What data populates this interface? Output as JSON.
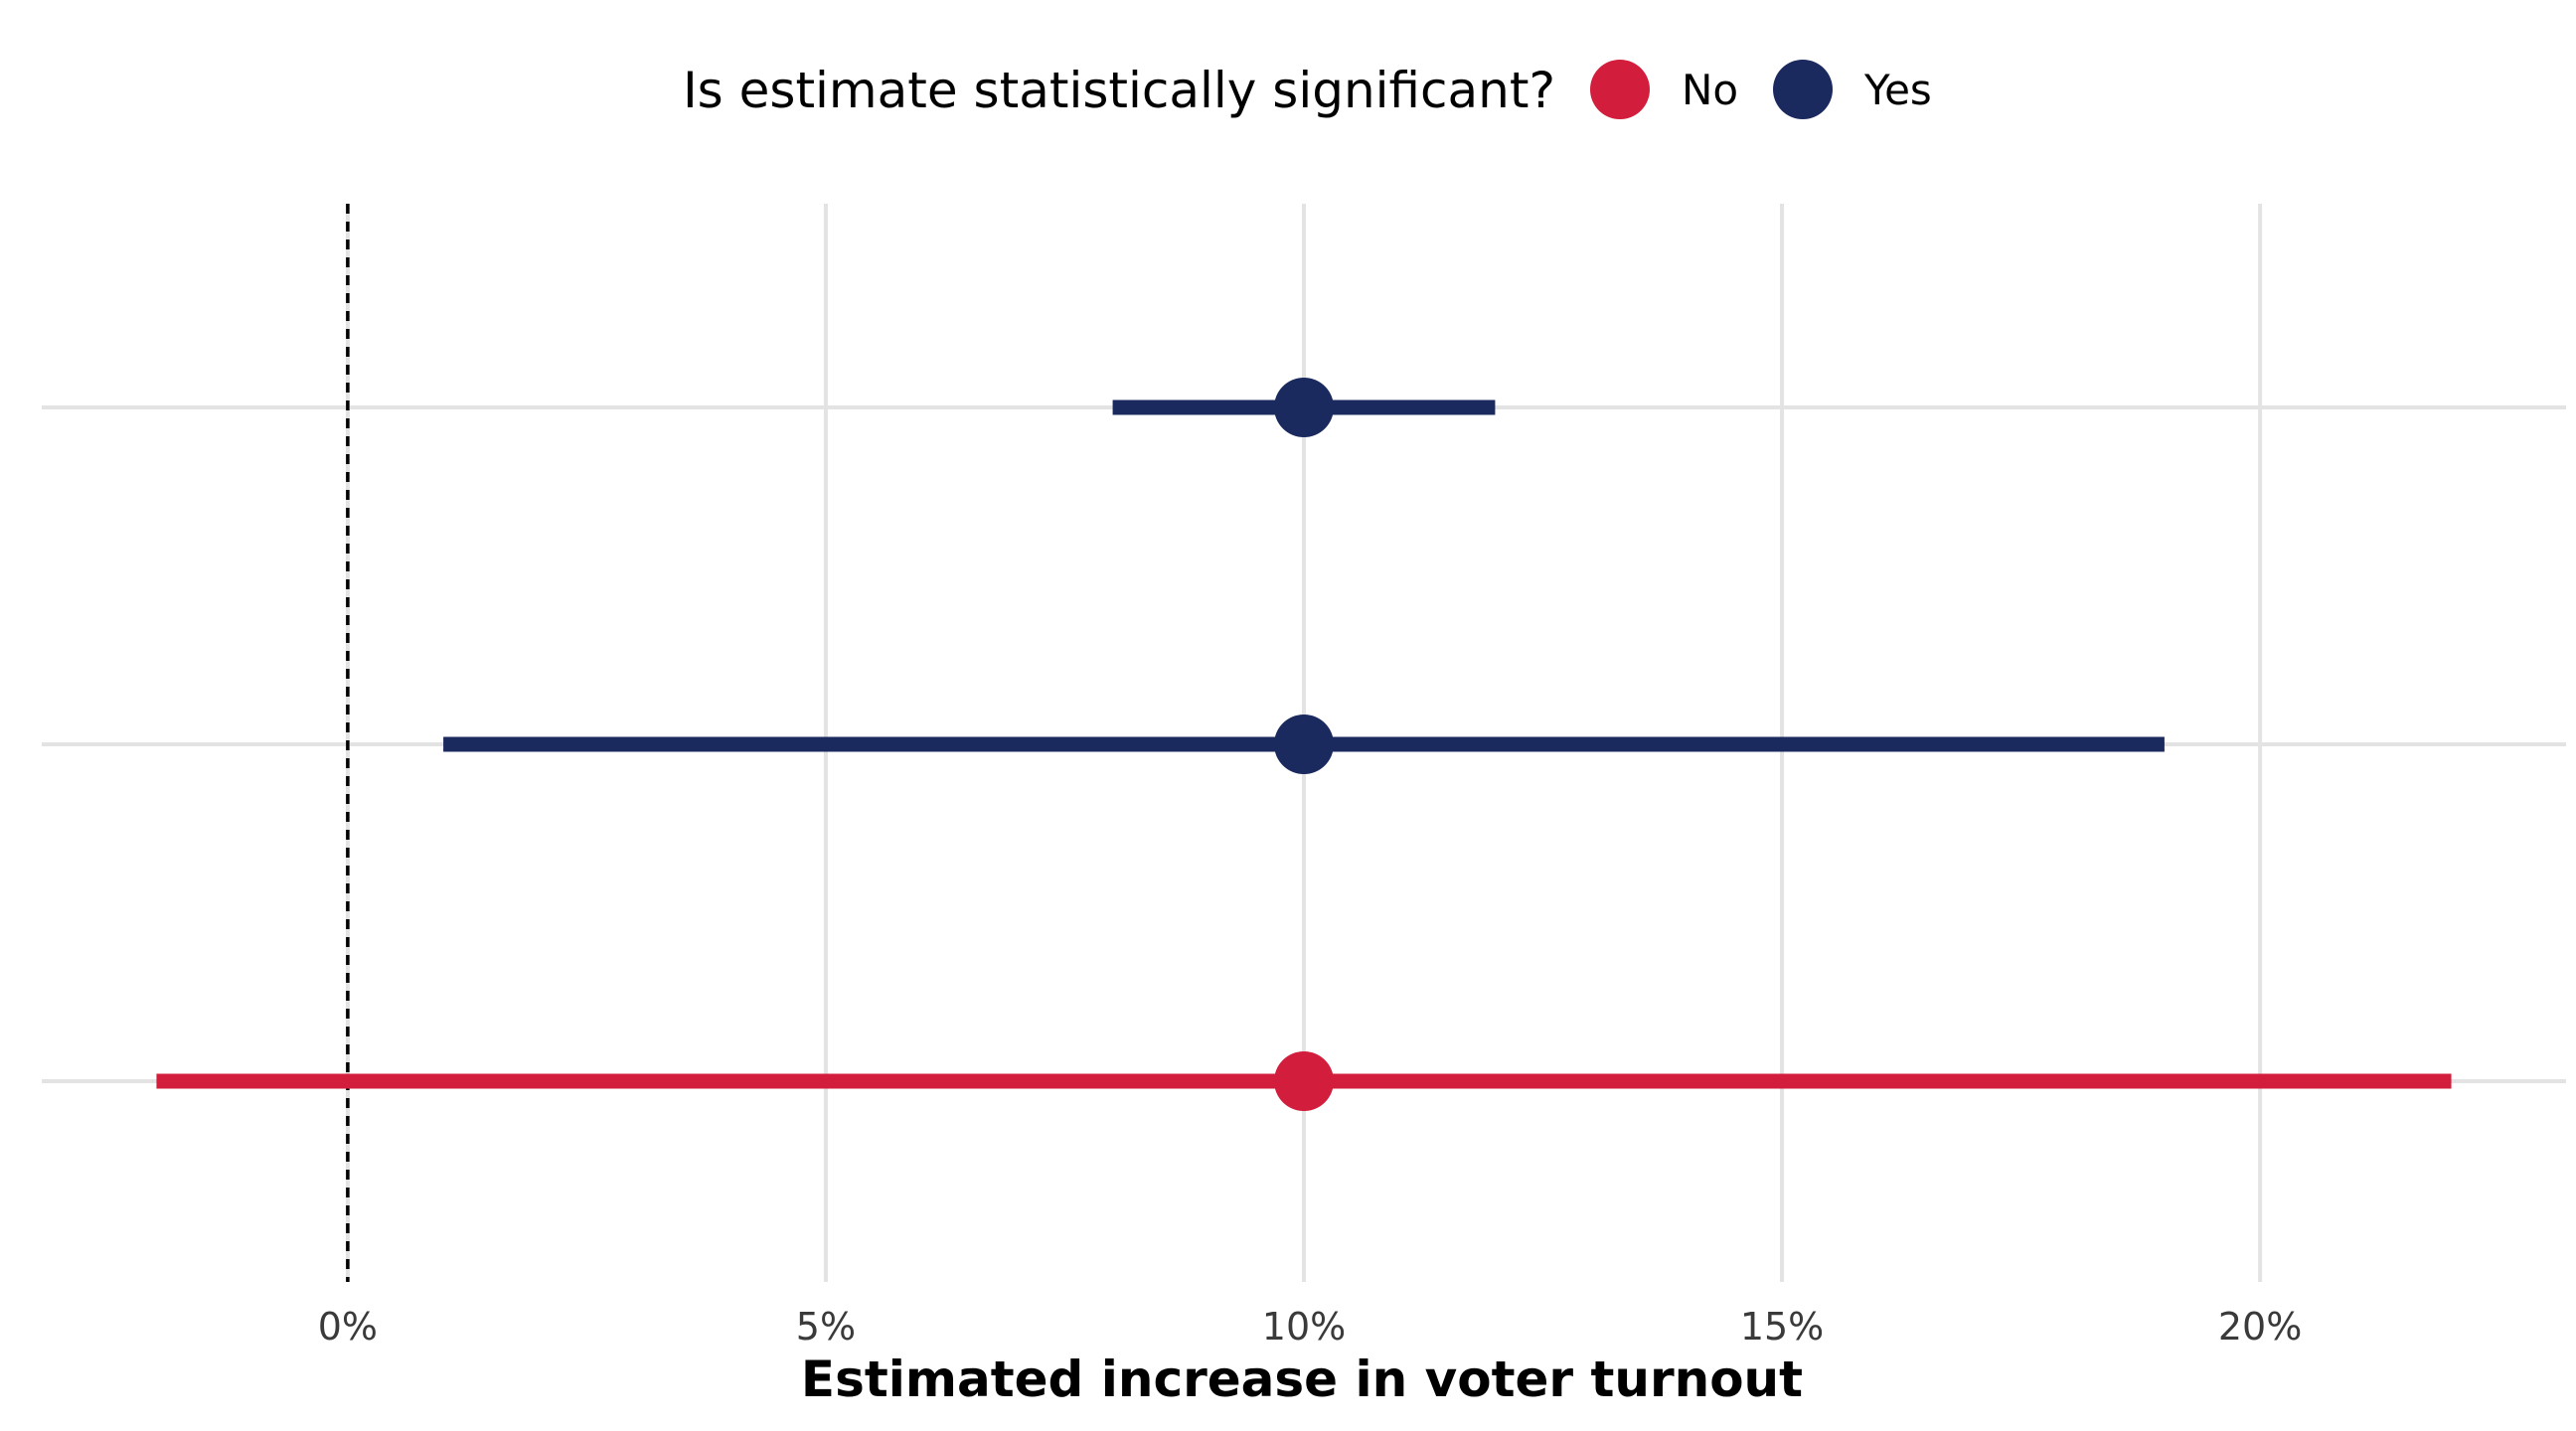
{
  "chart_data": {
    "type": "scatter",
    "legend": {
      "title": "Is estimate statistically significant?",
      "position": "top",
      "entries": [
        {
          "label": "No",
          "color": "#D21E3C"
        },
        {
          "label": "Yes",
          "color": "#1B2A5E"
        }
      ]
    },
    "xlabel": "Estimated increase in voter turnout",
    "ylabel": "",
    "xlim": [
      -3.2,
      23.2
    ],
    "x_ticks": [
      0,
      5,
      10,
      15,
      20
    ],
    "x_tick_labels": [
      "0%",
      "5%",
      "10%",
      "15%",
      "20%"
    ],
    "grid": true,
    "reference_line": {
      "x": 0,
      "style": "dashed"
    },
    "series": [
      {
        "name": "Yes",
        "estimate": 10,
        "lower": 8,
        "upper": 12,
        "significant": "Yes"
      },
      {
        "name": "Yes",
        "estimate": 10,
        "lower": 1,
        "upper": 19,
        "significant": "Yes"
      },
      {
        "name": "No",
        "estimate": 10,
        "lower": -2,
        "upper": 22,
        "significant": "No"
      }
    ]
  }
}
